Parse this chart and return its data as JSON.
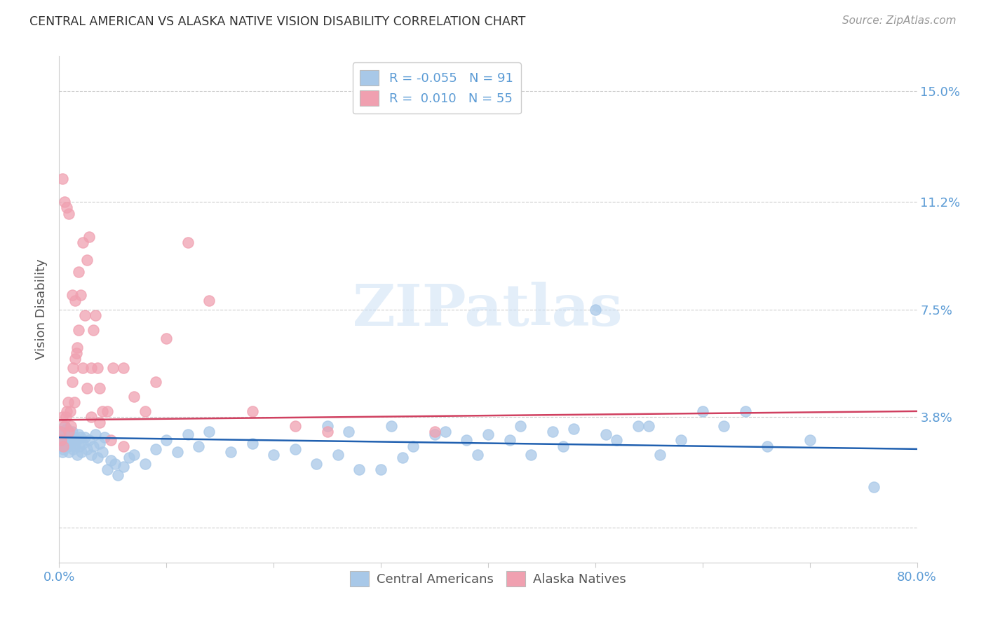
{
  "title": "CENTRAL AMERICAN VS ALASKA NATIVE VISION DISABILITY CORRELATION CHART",
  "source": "Source: ZipAtlas.com",
  "ylabel": "Vision Disability",
  "xlim": [
    0.0,
    0.8
  ],
  "ylim": [
    -0.012,
    0.162
  ],
  "yticks": [
    0.0,
    0.038,
    0.075,
    0.112,
    0.15
  ],
  "ytick_labels": [
    "",
    "3.8%",
    "7.5%",
    "11.2%",
    "15.0%"
  ],
  "xticks": [
    0.0,
    0.1,
    0.2,
    0.3,
    0.4,
    0.5,
    0.6,
    0.7,
    0.8
  ],
  "xtick_labels": [
    "0.0%",
    "",
    "",
    "",
    "",
    "",
    "",
    "",
    "80.0%"
  ],
  "blue_color": "#a8c8e8",
  "pink_color": "#f0a0b0",
  "blue_line_color": "#2060b0",
  "pink_line_color": "#d04060",
  "right_axis_color": "#5b9bd5",
  "legend_r_blue": "-0.055",
  "legend_n_blue": "91",
  "legend_r_pink": "0.010",
  "legend_n_pink": "55",
  "watermark_text": "ZIPatlas",
  "background_color": "#ffffff",
  "grid_color": "#c8c8c8",
  "blue_points_x": [
    0.001,
    0.002,
    0.002,
    0.003,
    0.003,
    0.004,
    0.004,
    0.005,
    0.005,
    0.006,
    0.006,
    0.007,
    0.007,
    0.008,
    0.008,
    0.009,
    0.009,
    0.01,
    0.011,
    0.012,
    0.013,
    0.014,
    0.015,
    0.016,
    0.017,
    0.018,
    0.019,
    0.02,
    0.021,
    0.022,
    0.024,
    0.026,
    0.028,
    0.03,
    0.032,
    0.034,
    0.036,
    0.038,
    0.04,
    0.042,
    0.045,
    0.048,
    0.052,
    0.055,
    0.06,
    0.065,
    0.07,
    0.08,
    0.09,
    0.1,
    0.11,
    0.12,
    0.13,
    0.14,
    0.16,
    0.18,
    0.2,
    0.22,
    0.24,
    0.26,
    0.28,
    0.3,
    0.32,
    0.35,
    0.38,
    0.4,
    0.43,
    0.46,
    0.5,
    0.54,
    0.58,
    0.62,
    0.66,
    0.48,
    0.52,
    0.56,
    0.6,
    0.64,
    0.7,
    0.76,
    0.25,
    0.27,
    0.31,
    0.33,
    0.36,
    0.39,
    0.42,
    0.44,
    0.47,
    0.51,
    0.55
  ],
  "blue_points_y": [
    0.03,
    0.028,
    0.033,
    0.031,
    0.026,
    0.032,
    0.027,
    0.03,
    0.035,
    0.028,
    0.033,
    0.029,
    0.034,
    0.028,
    0.031,
    0.026,
    0.032,
    0.03,
    0.029,
    0.033,
    0.027,
    0.031,
    0.028,
    0.03,
    0.025,
    0.032,
    0.028,
    0.031,
    0.026,
    0.029,
    0.031,
    0.027,
    0.03,
    0.025,
    0.028,
    0.032,
    0.024,
    0.029,
    0.026,
    0.031,
    0.02,
    0.023,
    0.022,
    0.018,
    0.021,
    0.024,
    0.025,
    0.022,
    0.027,
    0.03,
    0.026,
    0.032,
    0.028,
    0.033,
    0.026,
    0.029,
    0.025,
    0.027,
    0.022,
    0.025,
    0.02,
    0.02,
    0.024,
    0.032,
    0.03,
    0.032,
    0.035,
    0.033,
    0.075,
    0.035,
    0.03,
    0.035,
    0.028,
    0.034,
    0.03,
    0.025,
    0.04,
    0.04,
    0.03,
    0.014,
    0.035,
    0.033,
    0.035,
    0.028,
    0.033,
    0.025,
    0.03,
    0.025,
    0.028,
    0.032,
    0.035
  ],
  "pink_points_x": [
    0.001,
    0.002,
    0.003,
    0.004,
    0.005,
    0.006,
    0.007,
    0.008,
    0.009,
    0.01,
    0.011,
    0.012,
    0.013,
    0.014,
    0.015,
    0.016,
    0.017,
    0.018,
    0.02,
    0.022,
    0.024,
    0.026,
    0.028,
    0.03,
    0.032,
    0.034,
    0.036,
    0.038,
    0.04,
    0.045,
    0.05,
    0.06,
    0.07,
    0.08,
    0.09,
    0.1,
    0.12,
    0.14,
    0.18,
    0.22,
    0.003,
    0.005,
    0.007,
    0.009,
    0.012,
    0.015,
    0.018,
    0.022,
    0.026,
    0.03,
    0.038,
    0.048,
    0.06,
    0.25,
    0.35
  ],
  "pink_points_y": [
    0.033,
    0.03,
    0.038,
    0.028,
    0.035,
    0.038,
    0.04,
    0.043,
    0.033,
    0.04,
    0.035,
    0.05,
    0.055,
    0.043,
    0.058,
    0.06,
    0.062,
    0.088,
    0.08,
    0.098,
    0.073,
    0.092,
    0.1,
    0.055,
    0.068,
    0.073,
    0.055,
    0.048,
    0.04,
    0.04,
    0.055,
    0.055,
    0.045,
    0.04,
    0.05,
    0.065,
    0.098,
    0.078,
    0.04,
    0.035,
    0.12,
    0.112,
    0.11,
    0.108,
    0.08,
    0.078,
    0.068,
    0.055,
    0.048,
    0.038,
    0.036,
    0.03,
    0.028,
    0.033,
    0.033
  ]
}
